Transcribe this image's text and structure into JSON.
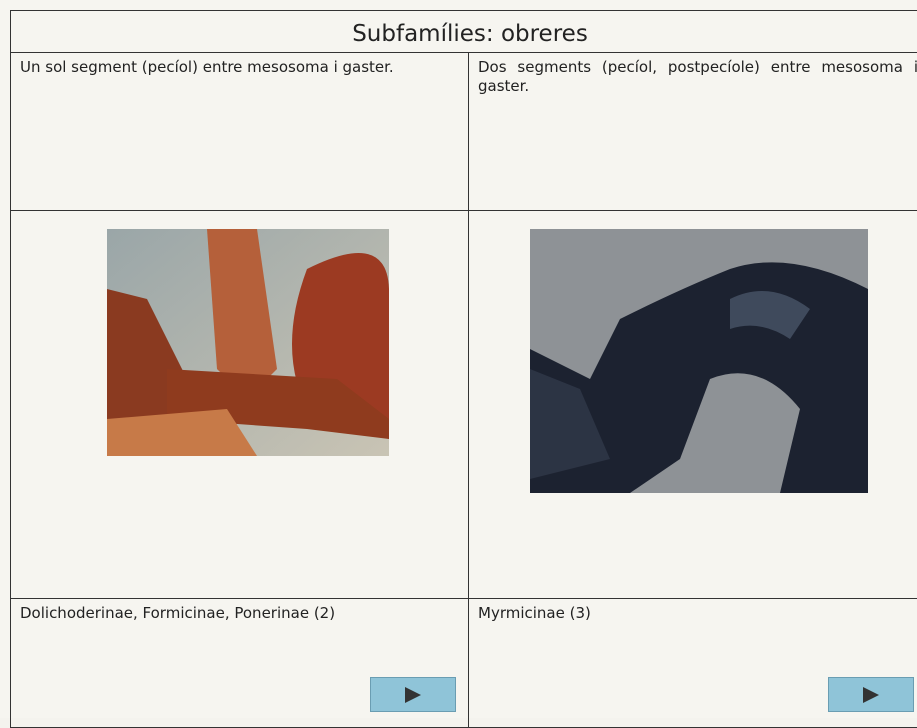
{
  "title": "Subfamílies: obreres",
  "columns": [
    {
      "description": "Un sol segment (pecíol) entre mesosoma i gaster.",
      "subfamilies": "Dolichoderinae, Formicinae, Ponerinae (2)"
    },
    {
      "description": "Dos segments (pecíol, postpecíole) entre mesosoma i gaster.",
      "subfamilies": "Myrmicinae (3)"
    }
  ]
}
